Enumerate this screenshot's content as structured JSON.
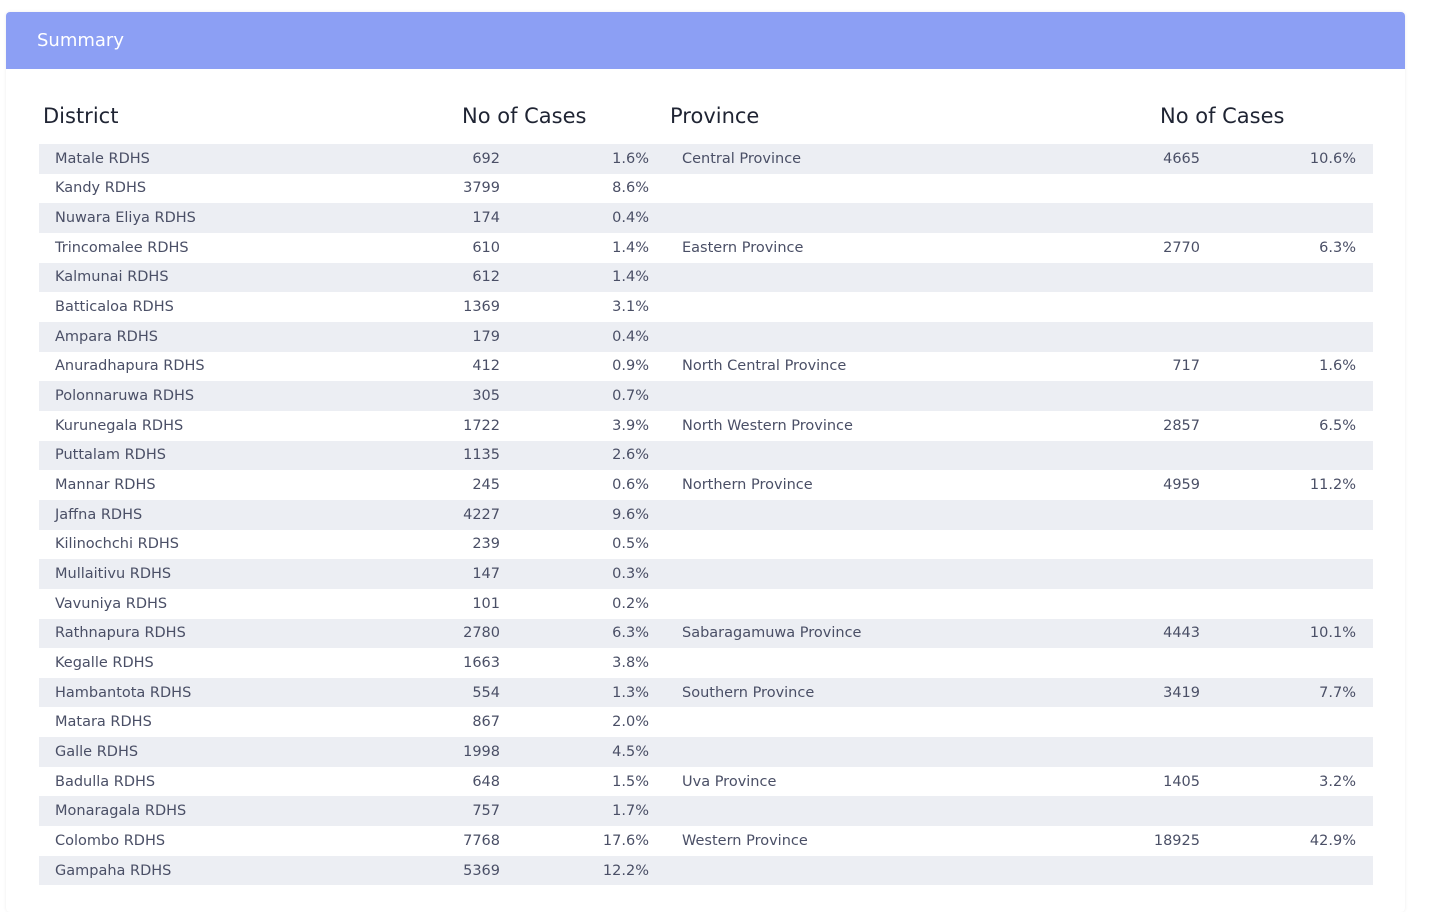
{
  "header": {
    "title": "Summary"
  },
  "columns": {
    "district": "District",
    "district_cases": "No of Cases",
    "province": "Province",
    "province_cases": "No of Cases"
  },
  "rows": [
    {
      "district": "Matale RDHS",
      "cases": "692",
      "pct": "1.6%",
      "province": "Central Province",
      "pcases": "4665",
      "ppct": "10.6%"
    },
    {
      "district": "Kandy RDHS",
      "cases": "3799",
      "pct": "8.6%",
      "province": "",
      "pcases": "",
      "ppct": ""
    },
    {
      "district": "Nuwara Eliya RDHS",
      "cases": "174",
      "pct": "0.4%",
      "province": "",
      "pcases": "",
      "ppct": ""
    },
    {
      "district": "Trincomalee RDHS",
      "cases": "610",
      "pct": "1.4%",
      "province": "Eastern Province",
      "pcases": "2770",
      "ppct": "6.3%"
    },
    {
      "district": "Kalmunai RDHS",
      "cases": "612",
      "pct": "1.4%",
      "province": "",
      "pcases": "",
      "ppct": ""
    },
    {
      "district": "Batticaloa RDHS",
      "cases": "1369",
      "pct": "3.1%",
      "province": "",
      "pcases": "",
      "ppct": ""
    },
    {
      "district": "Ampara RDHS",
      "cases": "179",
      "pct": "0.4%",
      "province": "",
      "pcases": "",
      "ppct": ""
    },
    {
      "district": "Anuradhapura RDHS",
      "cases": "412",
      "pct": "0.9%",
      "province": "North Central Province",
      "pcases": "717",
      "ppct": "1.6%"
    },
    {
      "district": "Polonnaruwa RDHS",
      "cases": "305",
      "pct": "0.7%",
      "province": "",
      "pcases": "",
      "ppct": ""
    },
    {
      "district": "Kurunegala RDHS",
      "cases": "1722",
      "pct": "3.9%",
      "province": "North Western Province",
      "pcases": "2857",
      "ppct": "6.5%"
    },
    {
      "district": "Puttalam RDHS",
      "cases": "1135",
      "pct": "2.6%",
      "province": "",
      "pcases": "",
      "ppct": ""
    },
    {
      "district": "Mannar RDHS",
      "cases": "245",
      "pct": "0.6%",
      "province": "Northern Province",
      "pcases": "4959",
      "ppct": "11.2%"
    },
    {
      "district": "Jaffna RDHS",
      "cases": "4227",
      "pct": "9.6%",
      "province": "",
      "pcases": "",
      "ppct": ""
    },
    {
      "district": "Kilinochchi RDHS",
      "cases": "239",
      "pct": "0.5%",
      "province": "",
      "pcases": "",
      "ppct": ""
    },
    {
      "district": "Mullaitivu RDHS",
      "cases": "147",
      "pct": "0.3%",
      "province": "",
      "pcases": "",
      "ppct": ""
    },
    {
      "district": "Vavuniya RDHS",
      "cases": "101",
      "pct": "0.2%",
      "province": "",
      "pcases": "",
      "ppct": ""
    },
    {
      "district": "Rathnapura RDHS",
      "cases": "2780",
      "pct": "6.3%",
      "province": "Sabaragamuwa Province",
      "pcases": "4443",
      "ppct": "10.1%"
    },
    {
      "district": "Kegalle RDHS",
      "cases": "1663",
      "pct": "3.8%",
      "province": "",
      "pcases": "",
      "ppct": ""
    },
    {
      "district": "Hambantota RDHS",
      "cases": "554",
      "pct": "1.3%",
      "province": "Southern Province",
      "pcases": "3419",
      "ppct": "7.7%"
    },
    {
      "district": "Matara RDHS",
      "cases": "867",
      "pct": "2.0%",
      "province": "",
      "pcases": "",
      "ppct": ""
    },
    {
      "district": "Galle RDHS",
      "cases": "1998",
      "pct": "4.5%",
      "province": "",
      "pcases": "",
      "ppct": ""
    },
    {
      "district": "Badulla RDHS",
      "cases": "648",
      "pct": "1.5%",
      "province": "Uva Province",
      "pcases": "1405",
      "ppct": "3.2%"
    },
    {
      "district": "Monaragala RDHS",
      "cases": "757",
      "pct": "1.7%",
      "province": "",
      "pcases": "",
      "ppct": ""
    },
    {
      "district": "Colombo RDHS",
      "cases": "7768",
      "pct": "17.6%",
      "province": "Western Province",
      "pcases": "18925",
      "ppct": "42.9%"
    },
    {
      "district": "Gampaha RDHS",
      "cases": "5369",
      "pct": "12.2%",
      "province": "",
      "pcases": "",
      "ppct": ""
    }
  ]
}
